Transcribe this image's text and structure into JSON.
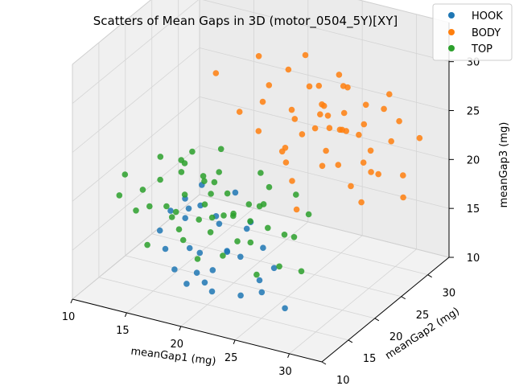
{
  "chart_data": {
    "type": "scatter",
    "title": "Scatters of Mean Gaps in 3D (motor_0504_5Y)[XY]",
    "xlabel": "meanGap1 (mg)",
    "ylabel": "meanGap2 (mg)",
    "zlabel": "meanGap3 (mg)",
    "xlim": [
      10,
      33
    ],
    "ylim": [
      10,
      34
    ],
    "zlim": [
      10,
      34
    ],
    "xticks": [
      "10",
      "15",
      "20",
      "25",
      "30"
    ],
    "yticks": [
      "10",
      "15",
      "20",
      "25",
      "30"
    ],
    "zticks": [
      "10",
      "15",
      "20",
      "25",
      "30"
    ],
    "grid": true,
    "legend_position": "top-right",
    "series": [
      {
        "name": "HOOK",
        "color": "#1f77b4",
        "points": [
          [
            16.5,
            13.2,
            17.4
          ],
          [
            17.2,
            12.8,
            15.9
          ],
          [
            18.4,
            14.1,
            18.8
          ],
          [
            19.1,
            13.5,
            16.2
          ],
          [
            20.3,
            12.4,
            14.5
          ],
          [
            21.0,
            14.6,
            19.5
          ],
          [
            17.8,
            15.3,
            20.1
          ],
          [
            22.4,
            13.8,
            16.7
          ],
          [
            19.6,
            11.9,
            13.4
          ],
          [
            23.1,
            14.9,
            15.8
          ],
          [
            18.9,
            16.2,
            21.4
          ],
          [
            24.0,
            13.1,
            12.9
          ],
          [
            20.7,
            15.8,
            18.1
          ],
          [
            16.9,
            14.4,
            19.0
          ],
          [
            25.2,
            14.2,
            14.3
          ],
          [
            21.8,
            12.2,
            13.1
          ],
          [
            22.9,
            16.5,
            17.9
          ],
          [
            19.9,
            13.9,
            20.6
          ],
          [
            26.1,
            15.1,
            15.4
          ],
          [
            18.1,
            12.7,
            14.1
          ],
          [
            23.7,
            15.6,
            19.2
          ],
          [
            20.1,
            14.3,
            12.6
          ],
          [
            24.6,
            16.1,
            16.6
          ],
          [
            17.4,
            16.8,
            18.3
          ],
          [
            27.3,
            14.7,
            11.8
          ],
          [
            21.5,
            17.2,
            20.9
          ],
          [
            19.3,
            15.0,
            15.1
          ],
          [
            25.8,
            13.4,
            13.6
          ],
          [
            22.2,
            11.5,
            15.7
          ],
          [
            20.9,
            16.9,
            14.8
          ]
        ]
      },
      {
        "name": "BODY",
        "color": "#ff7f0e",
        "points": [
          [
            18.2,
            20.3,
            30.8
          ],
          [
            19.5,
            22.1,
            26.4
          ],
          [
            20.1,
            24.5,
            31.2
          ],
          [
            21.4,
            21.8,
            25.1
          ],
          [
            22.0,
            26.2,
            29.6
          ],
          [
            22.8,
            23.4,
            22.7
          ],
          [
            23.5,
            27.1,
            27.9
          ],
          [
            24.1,
            22.6,
            20.4
          ],
          [
            24.9,
            25.3,
            24.8
          ],
          [
            25.6,
            28.4,
            29.1
          ],
          [
            26.2,
            24.0,
            21.9
          ],
          [
            26.9,
            26.7,
            26.3
          ],
          [
            27.5,
            29.2,
            24.2
          ],
          [
            28.1,
            25.5,
            19.7
          ],
          [
            28.8,
            27.8,
            22.5
          ],
          [
            29.4,
            30.1,
            27.4
          ],
          [
            30.2,
            26.4,
            21.1
          ],
          [
            30.9,
            28.9,
            25.6
          ],
          [
            31.6,
            31.3,
            23.0
          ],
          [
            32.1,
            27.2,
            18.9
          ],
          [
            20.8,
            25.0,
            28.2
          ],
          [
            21.9,
            27.6,
            23.9
          ],
          [
            23.2,
            29.5,
            26.8
          ],
          [
            24.5,
            30.8,
            22.1
          ],
          [
            25.1,
            21.4,
            18.3
          ],
          [
            26.6,
            23.1,
            28.7
          ],
          [
            27.8,
            24.7,
            30.2
          ],
          [
            28.5,
            22.3,
            23.4
          ],
          [
            29.9,
            23.8,
            19.3
          ],
          [
            23.9,
            24.9,
            24.1
          ],
          [
            25.3,
            26.9,
            25.5
          ],
          [
            26.4,
            28.1,
            23.7
          ],
          [
            27.1,
            25.9,
            25.0
          ],
          [
            24.7,
            27.4,
            26.1
          ],
          [
            22.5,
            25.8,
            25.8
          ],
          [
            28.3,
            26.6,
            24.5
          ],
          [
            26.0,
            25.1,
            22.9
          ],
          [
            25.7,
            29.8,
            27.2
          ],
          [
            27.9,
            28.3,
            20.8
          ],
          [
            23.0,
            23.7,
            21.5
          ],
          [
            21.2,
            23.0,
            27.5
          ],
          [
            29.1,
            29.7,
            26.0
          ],
          [
            30.5,
            24.4,
            22.3
          ],
          [
            24.3,
            20.9,
            24.6
          ],
          [
            26.8,
            31.0,
            25.2
          ],
          [
            28.7,
            31.9,
            21.6
          ],
          [
            22.3,
            28.8,
            30.0
          ],
          [
            31.2,
            29.0,
            20.1
          ],
          [
            27.4,
            22.9,
            26.6
          ],
          [
            25.9,
            24.2,
            27.0
          ]
        ]
      },
      {
        "name": "TOP",
        "color": "#2ca02c",
        "points": [
          [
            11.2,
            16.4,
            18.1
          ],
          [
            12.5,
            14.8,
            21.3
          ],
          [
            13.1,
            18.2,
            16.7
          ],
          [
            13.8,
            15.5,
            19.8
          ],
          [
            14.4,
            17.6,
            22.4
          ],
          [
            15.0,
            13.9,
            15.2
          ],
          [
            15.6,
            19.1,
            20.5
          ],
          [
            16.2,
            16.1,
            17.4
          ],
          [
            16.8,
            18.7,
            23.1
          ],
          [
            17.3,
            14.6,
            18.9
          ],
          [
            17.9,
            20.2,
            16.0
          ],
          [
            18.5,
            17.3,
            21.7
          ],
          [
            19.0,
            15.2,
            14.3
          ],
          [
            19.6,
            19.6,
            19.2
          ],
          [
            20.2,
            16.8,
            22.8
          ],
          [
            20.7,
            21.4,
            17.6
          ],
          [
            21.3,
            18.0,
            15.5
          ],
          [
            21.9,
            14.2,
            20.0
          ],
          [
            22.4,
            20.7,
            18.4
          ],
          [
            23.0,
            17.0,
            16.3
          ],
          [
            23.6,
            19.3,
            21.1
          ],
          [
            24.1,
            15.9,
            13.8
          ],
          [
            24.8,
            21.9,
            19.5
          ],
          [
            25.4,
            18.5,
            17.1
          ],
          [
            26.0,
            16.3,
            15.0
          ],
          [
            26.7,
            20.4,
            18.7
          ],
          [
            27.3,
            17.8,
            14.2
          ],
          [
            14.9,
            20.5,
            20.9
          ],
          [
            16.4,
            21.8,
            18.6
          ],
          [
            17.6,
            22.5,
            21.9
          ],
          [
            18.8,
            12.9,
            17.2
          ],
          [
            20.0,
            13.4,
            19.4
          ],
          [
            21.1,
            22.8,
            20.3
          ],
          [
            22.6,
            12.6,
            16.8
          ],
          [
            15.3,
            16.9,
            17.9
          ],
          [
            16.6,
            17.7,
            19.1
          ],
          [
            18.1,
            18.4,
            18.2
          ],
          [
            19.3,
            17.1,
            20.2
          ],
          [
            20.5,
            18.9,
            17.7
          ],
          [
            21.6,
            16.6,
            18.8
          ],
          [
            17.0,
            15.8,
            16.5
          ],
          [
            18.3,
            19.8,
            19.9
          ],
          [
            19.8,
            16.0,
            16.9
          ],
          [
            22.0,
            19.0,
            17.3
          ],
          [
            23.3,
            18.1,
            19.6
          ],
          [
            16.0,
            18.9,
            21.6
          ],
          [
            24.4,
            17.4,
            18.0
          ],
          [
            12.0,
            17.9,
            16.1
          ],
          [
            13.5,
            19.4,
            19.0
          ],
          [
            25.7,
            19.7,
            16.4
          ]
        ]
      }
    ]
  }
}
